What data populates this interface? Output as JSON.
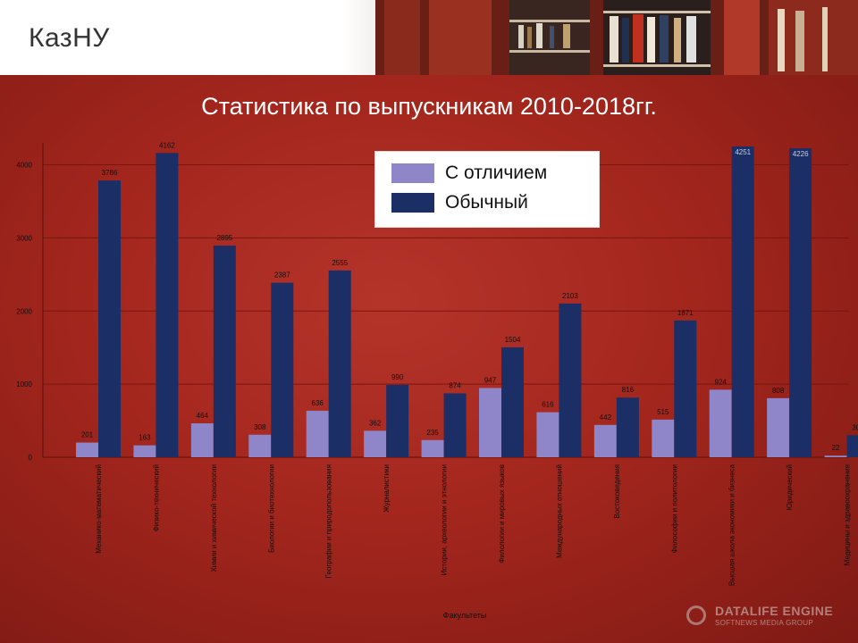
{
  "brand": {
    "logo": "КазНУ"
  },
  "slide": {
    "title": "Статистика по выпускникам 2010-2018гг."
  },
  "colors": {
    "honors": "#8e86c8",
    "regular": "#1b2f66",
    "background": "#a3241c"
  },
  "chart_data": {
    "type": "bar",
    "title": "Статистика по выпускникам 2010-2018гг.",
    "xlabel": "Факультеты",
    "ylabel": "",
    "ylim": [
      0,
      4300
    ],
    "yticks": [
      0,
      1000,
      2000,
      3000,
      4000
    ],
    "legend_position": "top-center",
    "grid": true,
    "categories": [
      "Механико-математический",
      "Физико-технический",
      "Химии и химической технологии",
      "Биологии и биотехнологии",
      "Географии и природопользования",
      "Журналистики",
      "Истории, археологии и этнологии",
      "Филологии и мировых языков",
      "Международных отношений",
      "Востоковедения",
      "Философии и политологии",
      "Высшая школа экономики и бизнеса",
      "Юридический",
      "Медицины и здравоохранения"
    ],
    "series": [
      {
        "name": "С отличием",
        "values": [
          201,
          163,
          464,
          308,
          636,
          362,
          235,
          947,
          616,
          442,
          515,
          924,
          808,
          22
        ]
      },
      {
        "name": "Обычный",
        "values": [
          3786,
          4162,
          2895,
          2387,
          2555,
          990,
          874,
          1504,
          2103,
          816,
          1871,
          4251,
          4226,
          301
        ]
      }
    ]
  }
}
